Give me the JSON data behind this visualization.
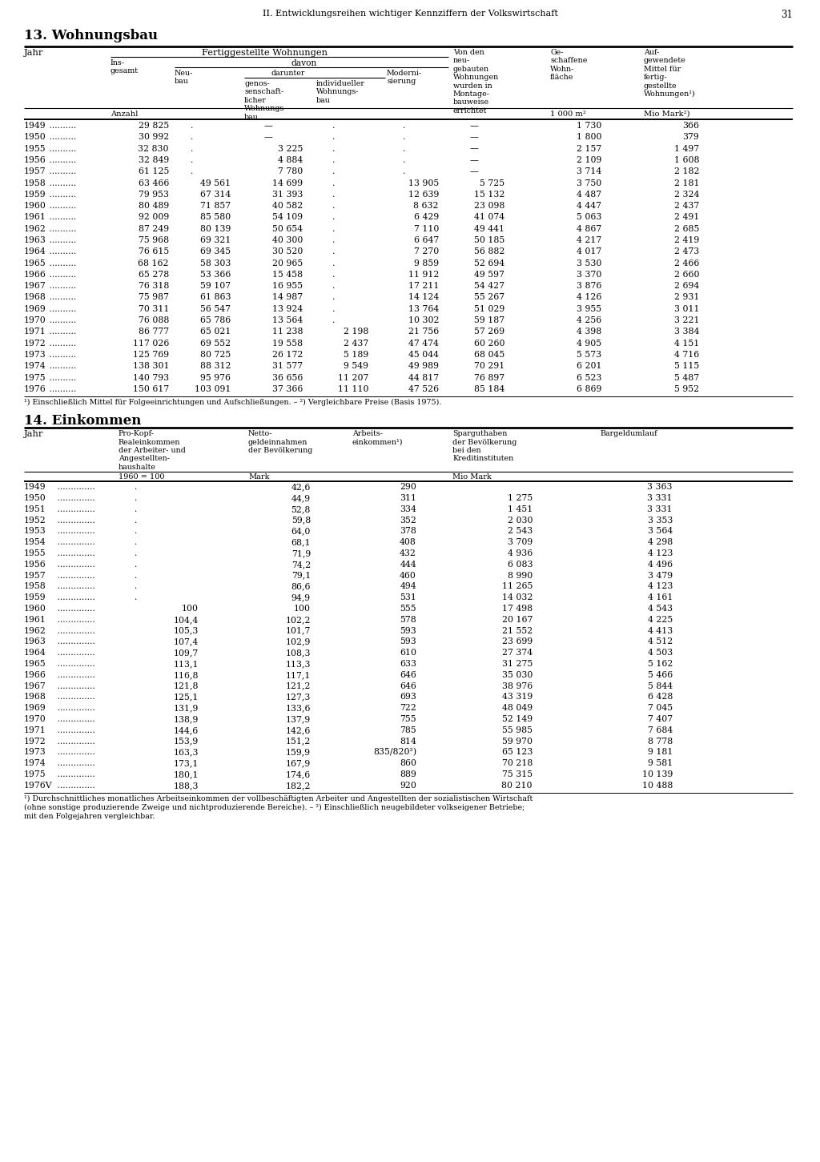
{
  "page_header": "II. Entwicklungsreihen wichtiger Kennziffern der Volkswirtschaft",
  "page_number": "31",
  "section13_title": "13. Wohnungsbau",
  "section14_title": "14. Einkommen",
  "wb_cols": [
    [
      "1949",
      "29 825",
      "",
      "—",
      "",
      "",
      "—",
      "1 730",
      "366"
    ],
    [
      "1950",
      "30 992",
      "",
      "—",
      "",
      "",
      "—",
      "1 800",
      "379"
    ],
    [
      "1955",
      "32 830",
      "",
      "3 225",
      "",
      "",
      "—",
      "2 157",
      "1 497"
    ],
    [
      "1956",
      "32 849",
      "",
      "4 884",
      "",
      "",
      "—",
      "2 109",
      "1 608"
    ],
    [
      "1957",
      "61 125",
      "",
      "7 780",
      "",
      "",
      "—",
      "3 714",
      "2 182"
    ],
    [
      "1958",
      "63 466",
      "49 561",
      "14 699",
      "",
      "13 905",
      "5 725",
      "3 750",
      "2 181"
    ],
    [
      "1959",
      "79 953",
      "67 314",
      "31 393",
      "",
      "12 639",
      "15 132",
      "4 487",
      "2 324"
    ],
    [
      "1960",
      "80 489",
      "71 857",
      "40 582",
      "",
      "8 632",
      "23 098",
      "4 447",
      "2 437"
    ],
    [
      "1961",
      "92 009",
      "85 580",
      "54 109",
      "",
      "6 429",
      "41 074",
      "5 063",
      "2 491"
    ],
    [
      "1962",
      "87 249",
      "80 139",
      "50 654",
      "",
      "7 110",
      "49 441",
      "4 867",
      "2 685"
    ],
    [
      "1963",
      "75 968",
      "69 321",
      "40 300",
      "",
      "6 647",
      "50 185",
      "4 217",
      "2 419"
    ],
    [
      "1964",
      "76 615",
      "69 345",
      "30 520",
      "",
      "7 270",
      "56 882",
      "4 017",
      "2 473"
    ],
    [
      "1965",
      "68 162",
      "58 303",
      "20 965",
      "",
      "9 859",
      "52 694",
      "3 530",
      "2 466"
    ],
    [
      "1966",
      "65 278",
      "53 366",
      "15 458",
      "",
      "11 912",
      "49 597",
      "3 370",
      "2 660"
    ],
    [
      "1967",
      "76 318",
      "59 107",
      "16 955",
      "",
      "17 211",
      "54 427",
      "3 876",
      "2 694"
    ],
    [
      "1968",
      "75 987",
      "61 863",
      "14 987",
      "",
      "14 124",
      "55 267",
      "4 126",
      "2 931"
    ],
    [
      "1969",
      "70 311",
      "56 547",
      "13 924",
      "",
      "13 764",
      "51 029",
      "3 955",
      "3 011"
    ],
    [
      "1970",
      "76 088",
      "65 786",
      "13 564",
      "",
      "10 302",
      "59 187",
      "4 256",
      "3 221"
    ],
    [
      "1971",
      "86 777",
      "65 021",
      "11 238",
      "2 198",
      "21 756",
      "57 269",
      "4 398",
      "3 384"
    ],
    [
      "1972",
      "117 026",
      "69 552",
      "19 558",
      "2 437",
      "47 474",
      "60 260",
      "4 905",
      "4 151"
    ],
    [
      "1973",
      "125 769",
      "80 725",
      "26 172",
      "5 189",
      "45 044",
      "68 045",
      "5 573",
      "4 716"
    ],
    [
      "1974",
      "138 301",
      "88 312",
      "31 577",
      "9 549",
      "49 989",
      "70 291",
      "6 201",
      "5 115"
    ],
    [
      "1975",
      "140 793",
      "95 976",
      "36 656",
      "11 207",
      "44 817",
      "76 897",
      "6 523",
      "5 487"
    ],
    [
      "1976",
      "150 617",
      "103 091",
      "37 366",
      "11 110",
      "47 526",
      "85 184",
      "6 869",
      "5 952"
    ]
  ],
  "wb_footnote": "¹) Einschließlich Mittel für Folgeeinrichtungen und Aufschließungen. – ²) Vergleichbare Preise (Basis 1975).",
  "ek_data": [
    [
      "1949",
      "",
      "42,6",
      "290",
      "",
      "3 363"
    ],
    [
      "1950",
      "",
      "44,9",
      "311",
      "1 275",
      "3 331"
    ],
    [
      "1951",
      "",
      "52,8",
      "334",
      "1 451",
      "3 331"
    ],
    [
      "1952",
      "",
      "59,8",
      "352",
      "2 030",
      "3 353"
    ],
    [
      "1953",
      "",
      "64,0",
      "378",
      "2 543",
      "3 564"
    ],
    [
      "1954",
      "",
      "68,1",
      "408",
      "3 709",
      "4 298"
    ],
    [
      "1955",
      "",
      "71,9",
      "432",
      "4 936",
      "4 123"
    ],
    [
      "1956",
      "",
      "74,2",
      "444",
      "6 083",
      "4 496"
    ],
    [
      "1957",
      "",
      "79,1",
      "460",
      "8 990",
      "3 479"
    ],
    [
      "1958",
      "",
      "86,6",
      "494",
      "11 265",
      "4 123"
    ],
    [
      "1959",
      "",
      "94,9",
      "531",
      "14 032",
      "4 161"
    ],
    [
      "1960",
      "100",
      "100",
      "555",
      "17 498",
      "4 543"
    ],
    [
      "1961",
      "104,4",
      "102,2",
      "578",
      "20 167",
      "4 225"
    ],
    [
      "1962",
      "105,3",
      "101,7",
      "593",
      "21 552",
      "4 413"
    ],
    [
      "1963",
      "107,4",
      "102,9",
      "593",
      "23 699",
      "4 512"
    ],
    [
      "1964",
      "109,7",
      "108,3",
      "610",
      "27 374",
      "4 503"
    ],
    [
      "1965",
      "113,1",
      "113,3",
      "633",
      "31 275",
      "5 162"
    ],
    [
      "1966",
      "116,8",
      "117,1",
      "646",
      "35 030",
      "5 466"
    ],
    [
      "1967",
      "121,8",
      "121,2",
      "646",
      "38 976",
      "5 844"
    ],
    [
      "1968",
      "125,1",
      "127,3",
      "693",
      "43 319",
      "6 428"
    ],
    [
      "1969",
      "131,9",
      "133,6",
      "722",
      "48 049",
      "7 045"
    ],
    [
      "1970",
      "138,9",
      "137,9",
      "755",
      "52 149",
      "7 407"
    ],
    [
      "1971",
      "144,6",
      "142,6",
      "785",
      "55 985",
      "7 684"
    ],
    [
      "1972",
      "153,9",
      "151,2",
      "814",
      "59 970",
      "8 778"
    ],
    [
      "1973",
      "163,3",
      "159,9",
      "835/820²)",
      "65 123",
      "9 181"
    ],
    [
      "1974",
      "173,1",
      "167,9",
      "860",
      "70 218",
      "9 581"
    ],
    [
      "1975",
      "180,1",
      "174,6",
      "889",
      "75 315",
      "10 139"
    ],
    [
      "1976V",
      "188,3",
      "182,2",
      "920",
      "80 210",
      "10 488"
    ]
  ],
  "ek_footnotes": [
    "¹) Durchschnittliches monatliches Arbeitseinkommen der vollbeschäftigten Arbeiter und Angestellten der sozialistischen Wirtschaft",
    "(ohne sonstige produzierende Zweige und nichtproduzierende Bereiche). – ²) Einschließlich neugebildeter volkseigener Betriebe;",
    "mit den Folgejahren vergleichbar."
  ]
}
